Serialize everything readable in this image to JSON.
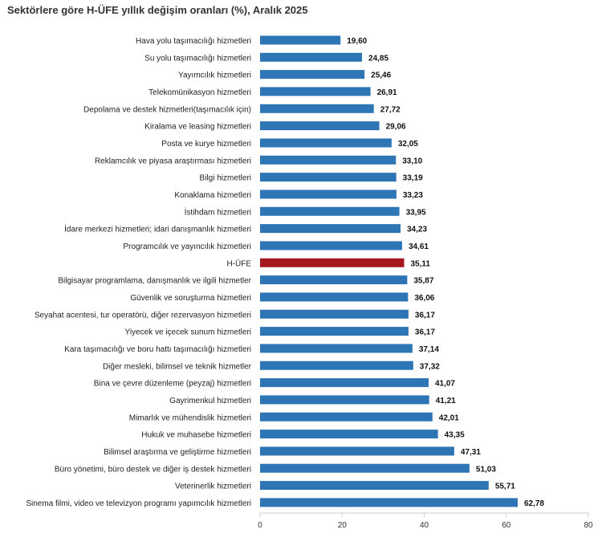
{
  "chart_data": {
    "type": "bar",
    "orientation": "horizontal",
    "title": "Sektörlere göre H-ÜFE yıllık değişim oranları (%), Aralık 2025",
    "xlabel": "",
    "ylabel": "",
    "xlim": [
      0,
      80
    ],
    "xticks": [
      0,
      20,
      40,
      60,
      80
    ],
    "grid": false,
    "bar_color": "#2E75B6",
    "highlight_color": "#A6161E",
    "highlight_category": "H-ÜFE",
    "categories": [
      "Hava yolu taşımacılığı hizmetleri",
      "Su yolu taşımacılığı hizmetleri",
      "Yayımcılık hizmetleri",
      "Telekomünikasyon hizmetleri",
      "Depolama ve destek hizmetleri(taşımacılık için)",
      "Kiralama ve leasing hizmetleri",
      "Posta ve kurye hizmetleri",
      "Reklamcılık ve piyasa araştırması hizmetleri",
      "Bilgi hizmetleri",
      "Konaklama hizmetleri",
      "İstihdam hizmetleri",
      "İdare merkezi hizmetleri; idari danışmanlık hizmetleri",
      "Programcılık ve yayıncılık hizmetleri",
      "H-ÜFE",
      "Bilgisayar programlama, danışmanlık ve ilgili hizmetler",
      "Güvenlik ve soruşturma hizmetleri",
      "Seyahat acentesi, tur operatörü, diğer rezervasyon hizmetleri",
      "Yiyecek ve içecek sunum hizmetleri",
      "Kara taşımacılığı ve boru hattı taşımacılığı hizmetleri",
      "Diğer mesleki, bilimsel ve teknik hizmetler",
      "Bina ve çevre düzenleme (peyzaj) hizmetleri",
      "Gayrimenkul hizmetleri",
      "Mimarlık ve mühendislik hizmetleri",
      "Hukuk ve muhasebe hizmetleri",
      "Bilimsel araştırma ve geliştirme hizmetleri",
      "Büro yönetimi, büro destek ve diğer iş destek hizmetleri",
      "Veterinerlik hizmetleri",
      "Sinema filmi, video ve televizyon programı yapımcılık hizmetleri"
    ],
    "values": [
      19.6,
      24.85,
      25.46,
      26.91,
      27.72,
      29.06,
      32.05,
      33.1,
      33.19,
      33.23,
      33.95,
      34.23,
      34.61,
      35.11,
      35.87,
      36.06,
      36.17,
      36.17,
      37.14,
      37.32,
      41.07,
      41.21,
      42.01,
      43.35,
      47.31,
      51.03,
      55.71,
      62.78
    ],
    "value_labels": [
      "19,60",
      "24,85",
      "25,46",
      "26,91",
      "27,72",
      "29,06",
      "32,05",
      "33,10",
      "33,19",
      "33,23",
      "33,95",
      "34,23",
      "34,61",
      "35,11",
      "35,87",
      "36,06",
      "36,17",
      "36,17",
      "37,14",
      "37,32",
      "41,07",
      "41,21",
      "42,01",
      "43,35",
      "47,31",
      "51,03",
      "55,71",
      "62,78"
    ]
  }
}
